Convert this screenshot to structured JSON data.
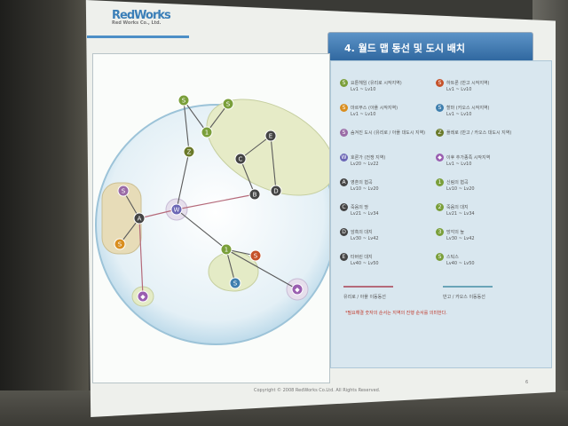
{
  "logo": {
    "name": "RedWorks",
    "tagline": "Red Works Co., Ltd."
  },
  "title": "4. 월드 맵 동선 및 도시 배치",
  "legend": [
    {
      "icon": "S",
      "color": "#7a9f3a",
      "label": "요툰헤임 (유리로 시작지역)",
      "level": "Lv1 ~ Lv10"
    },
    {
      "icon": "S",
      "color": "#c5522a",
      "label": "하트론 (반고 시작지역)",
      "level": "Lv1 ~ Lv10"
    },
    {
      "icon": "S",
      "color": "#d98e1f",
      "label": "마르부스 (아플 시작지역)",
      "level": "Lv1 ~ Lv10"
    },
    {
      "icon": "S",
      "color": "#3f7fae",
      "label": "할마 (카오스 시작지역)",
      "level": "Lv1 ~ Lv10"
    },
    {
      "icon": "S",
      "color": "#9a6ba6",
      "label": "숨겨진 도시 (유리로 / 아플 대도시 지역)",
      "level": ""
    },
    {
      "icon": "Z",
      "color": "#6a7a2a",
      "label": "플레로 (반고 / 카오스 대도시 지역)",
      "level": ""
    },
    {
      "icon": "W",
      "color": "#6b66b5",
      "label": "호론가 (전쟁 지역)",
      "level": "Lv20 ~ Lv22"
    },
    {
      "icon": "◆",
      "color": "#9a5fb0",
      "label": "이후 추가종족 시작지역",
      "level": "Lv1 ~ Lv10"
    },
    {
      "icon": "A",
      "color": "#444",
      "label": "영혼의 협곡",
      "level": "Lv10 ~ Lv20"
    },
    {
      "icon": "1",
      "color": "#7a9f3a",
      "label": "신림의 협곡",
      "level": "Lv10 ~ Lv20"
    },
    {
      "icon": "C",
      "color": "#444",
      "label": "죽음의 땅",
      "level": "Lv21 ~ Lv34"
    },
    {
      "icon": "2",
      "color": "#7a9f3a",
      "label": "죽음의 대지",
      "level": "Lv21 ~ Lv34"
    },
    {
      "icon": "D",
      "color": "#444",
      "label": "암흑의 대지",
      "level": "Lv30 ~ Lv42"
    },
    {
      "icon": "3",
      "color": "#7a9f3a",
      "label": "망각의 늪",
      "level": "Lv30 ~ Lv42"
    },
    {
      "icon": "E",
      "color": "#444",
      "label": "타버린 대지",
      "level": "Lv40 ~ Lv50"
    },
    {
      "icon": "S",
      "color": "#7a9f3a",
      "label": "스틱스",
      "level": "Lv40 ~ Lv50"
    }
  ],
  "legend_lines": [
    {
      "label": "유리로 / 아플 이동동선",
      "color": "#b56a7a"
    },
    {
      "label": "반고 / 카오스 이동동선",
      "color": "#6aa4b8"
    }
  ],
  "note": "*필요해결 숫자의 순서는 지역의 진행 순서를 의미한다.",
  "copyright": "Copyright © 2008 RedWorks Co.Ltd. All Rights Reserved.",
  "page_number": "6",
  "map_nodes": [
    {
      "id": "s-top1",
      "label": "S",
      "color": "#7a9f3a"
    },
    {
      "id": "s-top2",
      "label": "S",
      "color": "#7a9f3a"
    },
    {
      "id": "n-1",
      "label": "1",
      "color": "#7a9f3a"
    },
    {
      "id": "z",
      "label": "Z",
      "color": "#6a7a2a"
    },
    {
      "id": "c",
      "label": "C",
      "color": "#444"
    },
    {
      "id": "e",
      "label": "E",
      "color": "#444"
    },
    {
      "id": "b",
      "label": "B",
      "color": "#444"
    },
    {
      "id": "d",
      "label": "D",
      "color": "#444"
    },
    {
      "id": "s-left1",
      "label": "S",
      "color": "#9a6ba6"
    },
    {
      "id": "a",
      "label": "A",
      "color": "#444"
    },
    {
      "id": "s-left2",
      "label": "S",
      "color": "#d98e1f"
    },
    {
      "id": "w",
      "label": "W",
      "color": "#6b66b5"
    },
    {
      "id": "diamond-left",
      "label": "◆",
      "color": "#9a5fb0"
    },
    {
      "id": "n-2",
      "label": "1",
      "color": "#7a9f3a"
    },
    {
      "id": "s-red",
      "label": "S",
      "color": "#c5522a"
    },
    {
      "id": "s-blue",
      "label": "S",
      "color": "#3f7fae"
    },
    {
      "id": "diamond-right",
      "label": "◆",
      "color": "#9a5fb0"
    }
  ]
}
